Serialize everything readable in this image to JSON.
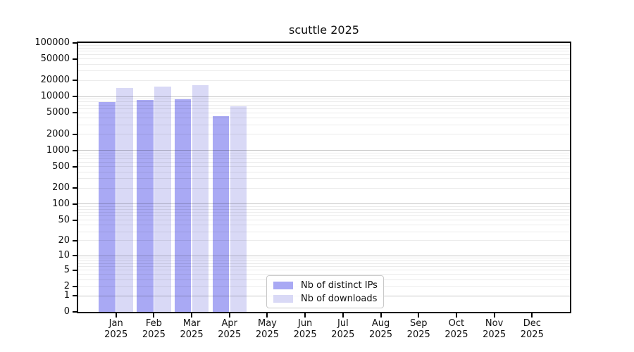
{
  "title": "scuttle 2025",
  "chart_data": {
    "type": "bar",
    "title": "scuttle 2025",
    "months": [
      "Jan",
      "Feb",
      "Mar",
      "Apr",
      "May",
      "Jun",
      "Jul",
      "Aug",
      "Sep",
      "Oct",
      "Nov",
      "Dec"
    ],
    "year_label": "2025",
    "series": [
      {
        "name": "Nb of distinct IPs",
        "color": "#a9a9f4",
        "values": [
          7900,
          8700,
          9000,
          4300,
          null,
          null,
          null,
          null,
          null,
          null,
          null,
          null
        ]
      },
      {
        "name": "Nb of downloads",
        "color": "#d9d9f6",
        "values": [
          14400,
          15300,
          16400,
          6700,
          null,
          null,
          null,
          null,
          null,
          null,
          null,
          null
        ]
      }
    ],
    "yscale": "log1p",
    "ylim": [
      0,
      100000
    ],
    "yticks": [
      100000,
      50000,
      20000,
      10000,
      5000,
      2000,
      1000,
      500,
      200,
      100,
      50,
      20,
      10,
      5,
      2,
      1,
      0
    ],
    "grid": true,
    "legend_position": "lower center"
  },
  "colors": {
    "background": "#ffffff",
    "spine": "#000000",
    "grid_major": "rgba(0,0,0,0.22)",
    "grid_minor": "rgba(0,0,0,0.08)",
    "distinct_ips": "#a9a9f4",
    "downloads": "#d9d9f6",
    "legend_border": "#c9c9c9"
  }
}
